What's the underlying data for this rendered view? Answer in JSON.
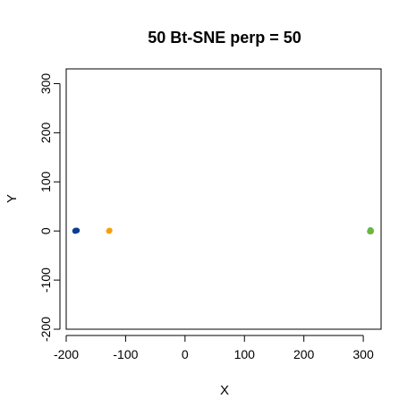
{
  "chart_data": {
    "type": "scatter",
    "title": "50 Bt-SNE perp = 50",
    "xlabel": "X",
    "ylabel": "Y",
    "xlim": [
      -200,
      330
    ],
    "ylim": [
      -200,
      330
    ],
    "xticks": [
      -200,
      -100,
      0,
      100,
      200,
      300
    ],
    "yticks": [
      -200,
      -100,
      0,
      100,
      200,
      300
    ],
    "grid": false,
    "series": [
      {
        "color": "#0b3d91",
        "points": [
          [
            -184,
            1
          ],
          [
            -182,
            1
          ],
          [
            -185,
            0
          ]
        ]
      },
      {
        "color": "#f5a00a",
        "points": [
          [
            -128,
            0
          ],
          [
            -127,
            1
          ]
        ]
      },
      {
        "color": "#6ab63e",
        "points": [
          [
            312,
            0
          ],
          [
            313,
            1
          ],
          [
            311,
            -1
          ],
          [
            312,
            2
          ],
          [
            313,
            -1
          ]
        ]
      }
    ]
  }
}
